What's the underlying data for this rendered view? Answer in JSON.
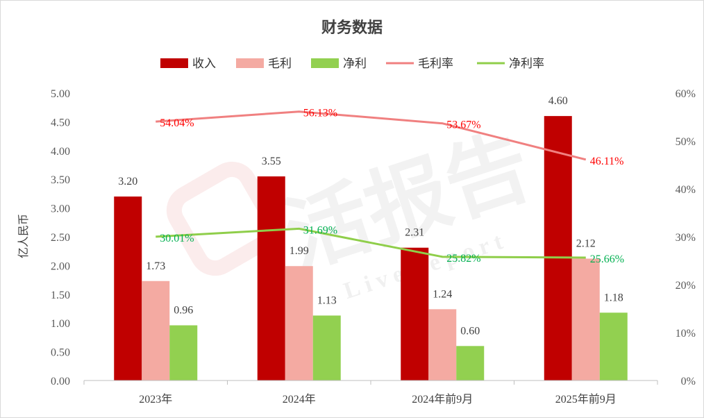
{
  "colors": {
    "revenue": "#c00000",
    "gross_profit": "#f4aaa2",
    "net_profit": "#92d050",
    "gross_margin": "#f08080",
    "net_margin": "#8fce4a",
    "gross_margin_label": "#ff0000",
    "net_margin_label": "#00b050",
    "watermark": "#e06060"
  },
  "watermark": {
    "logo": "活报告",
    "text": "LiveReport"
  },
  "chart_data": {
    "type": "bar",
    "title": "财务数据",
    "ylabel": "亿人民币",
    "categories": [
      "2023年",
      "2024年",
      "2024年前9月",
      "2025年前9月"
    ],
    "ylim": [
      0,
      5
    ],
    "y_ticks": [
      "0.00",
      "0.50",
      "1.00",
      "1.50",
      "2.00",
      "2.50",
      "3.00",
      "3.50",
      "4.00",
      "4.50",
      "5.00"
    ],
    "y2lim": [
      0,
      0.6
    ],
    "y2_ticks": [
      "0%",
      "10%",
      "20%",
      "30%",
      "40%",
      "50%",
      "60%"
    ],
    "legend_position": "top",
    "series": [
      {
        "name": "收入",
        "kind": "bar",
        "values": [
          3.2,
          3.55,
          2.31,
          4.6
        ],
        "labels": [
          "3.20",
          "3.55",
          "2.31",
          "4.60"
        ]
      },
      {
        "name": "毛利",
        "kind": "bar",
        "values": [
          1.73,
          1.99,
          1.24,
          2.12
        ],
        "labels": [
          "1.73",
          "1.99",
          "1.24",
          "2.12"
        ]
      },
      {
        "name": "净利",
        "kind": "bar",
        "values": [
          0.96,
          1.13,
          0.6,
          1.18
        ],
        "labels": [
          "0.96",
          "1.13",
          "0.60",
          "1.18"
        ]
      },
      {
        "name": "毛利率",
        "kind": "line",
        "axis": "right",
        "values": [
          0.5404,
          0.5613,
          0.5367,
          0.4611
        ],
        "labels": [
          "54.04%",
          "56.13%",
          "53.67%",
          "46.11%"
        ]
      },
      {
        "name": "净利率",
        "kind": "line",
        "axis": "right",
        "values": [
          0.3001,
          0.3169,
          0.2582,
          0.2566
        ],
        "labels": [
          "30.01%",
          "31.69%",
          "25.82%",
          "25.66%"
        ]
      }
    ]
  }
}
